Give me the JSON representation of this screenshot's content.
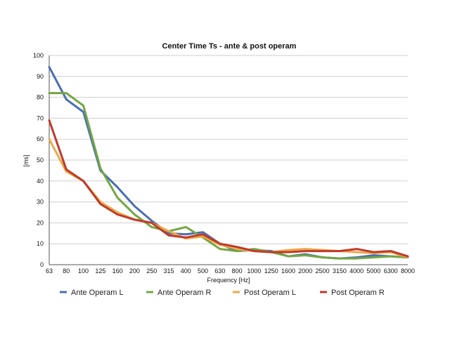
{
  "chart_data": {
    "type": "line",
    "title": "Center Time Ts - ante & post operam",
    "xlabel": "Frequency [Hz]",
    "ylabel": "[ms]",
    "ylim": [
      0,
      100
    ],
    "yticks": [
      0,
      10,
      20,
      30,
      40,
      50,
      60,
      70,
      80,
      90,
      100
    ],
    "grid": true,
    "legend_position": "bottom",
    "categories": [
      "63",
      "80",
      "100",
      "125",
      "160",
      "200",
      "250",
      "315",
      "400",
      "500",
      "630",
      "800",
      "1000",
      "1250",
      "1600",
      "2000",
      "2500",
      "3150",
      "4000",
      "5000",
      "6300",
      "8000"
    ],
    "series": [
      {
        "name": "Ante Operam L",
        "color": "#4a6db3",
        "values": [
          94.5,
          79,
          73,
          45,
          37,
          28,
          21,
          15,
          14.5,
          15.5,
          10,
          6.5,
          7,
          6.5,
          4,
          5,
          3.5,
          3,
          3.5,
          4.5,
          4,
          3.5
        ]
      },
      {
        "name": "Ante Operam R",
        "color": "#74a643",
        "values": [
          82,
          82,
          76,
          46,
          32,
          24,
          18,
          16,
          18,
          13,
          7.5,
          6.5,
          7.5,
          6,
          4,
          4.5,
          3.5,
          3,
          3,
          3.5,
          4,
          3.5
        ]
      },
      {
        "name": "Post Operam L",
        "color": "#eaaa4a",
        "values": [
          60,
          44.5,
          40,
          30,
          25,
          21.5,
          20,
          16,
          12.5,
          13.5,
          9.5,
          7.5,
          6.5,
          6,
          7,
          7.5,
          7,
          6.5,
          6,
          5.5,
          6,
          3.5
        ]
      },
      {
        "name": "Post Operam R",
        "color": "#c0392b",
        "values": [
          69,
          45.5,
          40,
          29,
          24,
          21.5,
          20,
          14,
          13,
          14.5,
          10,
          8.5,
          6.5,
          6,
          6,
          6.5,
          6.5,
          6.5,
          7.5,
          6,
          6.5,
          4
        ]
      }
    ]
  }
}
